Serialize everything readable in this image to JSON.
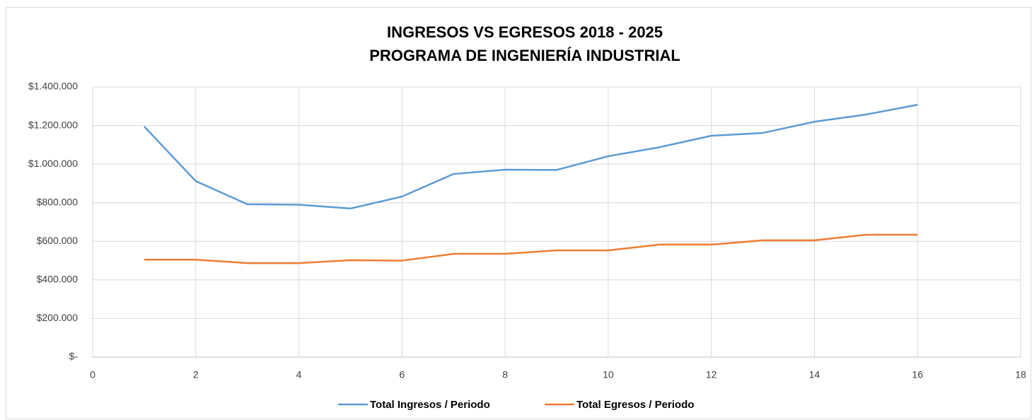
{
  "chart_data": {
    "type": "line",
    "title": [
      "INGRESOS VS EGRESOS 2018 - 2025",
      "PROGRAMA DE INGENIERÍA INDUSTRIAL"
    ],
    "x": [
      1,
      2,
      3,
      4,
      5,
      6,
      7,
      8,
      9,
      10,
      11,
      12,
      13,
      14,
      15,
      16
    ],
    "series": [
      {
        "name": "Total Ingresos / Periodo",
        "color": "#5b9bd5",
        "values": [
          1195000,
          912000,
          792000,
          790000,
          770000,
          832000,
          949000,
          971000,
          970000,
          1041000,
          1088000,
          1147000,
          1162000,
          1220000,
          1257000,
          1308000
        ]
      },
      {
        "name": "Total Egresos / Periodo",
        "color": "#ed7d31",
        "values": [
          505000,
          505000,
          487000,
          487000,
          502000,
          500000,
          535000,
          535000,
          553000,
          553000,
          583000,
          583000,
          605000,
          605000,
          634000,
          634000
        ]
      }
    ],
    "xlim": [
      0,
      18
    ],
    "xticks": [
      0,
      2,
      4,
      6,
      8,
      10,
      12,
      14,
      16,
      18
    ],
    "ylim": [
      0,
      1400000
    ],
    "yticks": [
      {
        "value": 0,
        "label": "$-"
      },
      {
        "value": 200000,
        "label": "$200.000"
      },
      {
        "value": 400000,
        "label": "$400.000"
      },
      {
        "value": 600000,
        "label": "$600.000"
      },
      {
        "value": 800000,
        "label": "$800.000"
      },
      {
        "value": 1000000,
        "label": "$1.000.000"
      },
      {
        "value": 1200000,
        "label": "$1.200.000"
      },
      {
        "value": 1400000,
        "label": "$1.400.000"
      }
    ],
    "grid": true,
    "legend": "bottom"
  }
}
